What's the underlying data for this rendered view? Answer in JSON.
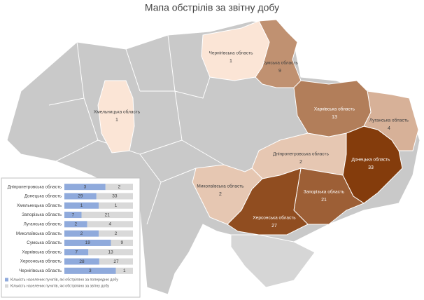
{
  "title": "Мапа обстрілів за звітну добу",
  "chart_data": {
    "type": "bar",
    "orientation": "horizontal",
    "stacked": "percent",
    "categories": [
      "Дніпропетровська область",
      "Донецька область",
      "Хмельницька область",
      "Запорізька область",
      "Луганська область",
      "Миколаївська область",
      "Сумська область",
      "Харківська область",
      "Херсонська область",
      "Чернігівська  область"
    ],
    "series": [
      {
        "name": "Кількість населених пунктів, які обстріляно за попередню добу",
        "color": "#8faadc",
        "values": [
          3,
          29,
          1,
          7,
          2,
          2,
          19,
          7,
          28,
          3
        ]
      },
      {
        "name": "Кількість населених пунктів, які обстріляно за звітну добу",
        "color": "#d9d9d9",
        "values": [
          2,
          33,
          1,
          21,
          4,
          2,
          9,
          13,
          27,
          1
        ]
      }
    ]
  }
}
